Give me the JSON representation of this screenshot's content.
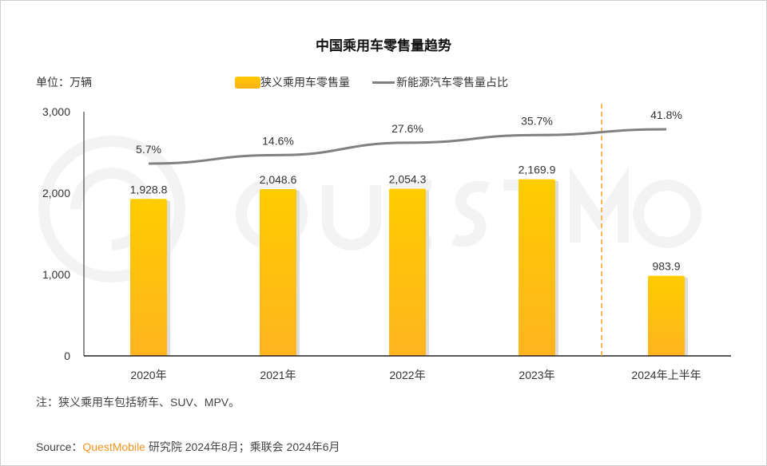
{
  "chart_data": {
    "type": "bar+line",
    "title": "中国乘用车零售量趋势",
    "unit_label": "单位：万辆",
    "categories": [
      "2020年",
      "2021年",
      "2022年",
      "2023年",
      "2024年上半年"
    ],
    "ylim": [
      0,
      3000
    ],
    "yticks": [
      "0",
      "1,000",
      "2,000",
      "3,000"
    ],
    "ytick_values": [
      0,
      1000,
      2000,
      3000
    ],
    "grid": false,
    "legend_position": "top",
    "series": [
      {
        "name": "狭义乘用车零售量",
        "type": "bar",
        "values": [
          1928.8,
          2048.6,
          2054.3,
          2169.9,
          983.9
        ],
        "labels": [
          "1,928.8",
          "2,048.6",
          "2,054.3",
          "2,169.9",
          "983.9"
        ],
        "color": "#ffbe0f"
      },
      {
        "name": "新能源汽车零售量占比",
        "type": "line",
        "axis": "secondary (hidden)",
        "values": [
          5.7,
          14.6,
          27.6,
          35.7,
          41.8
        ],
        "labels": [
          "5.7%",
          "14.6%",
          "27.6%",
          "35.7%",
          "41.8%"
        ],
        "color": "#808080"
      }
    ],
    "divider": {
      "between": [
        "2023年",
        "2024年上半年"
      ],
      "style": "dashed",
      "color": "#f7a11a"
    }
  },
  "watermark": "QUEST MOBILE",
  "footer": {
    "note": "注：狭义乘用车包括轿车、SUV、MPV。",
    "source_prefix": "Source：",
    "source_brand": "QuestMobile",
    "source_rest": " 研究院 2024年8月；乘联会 2024年6月"
  }
}
